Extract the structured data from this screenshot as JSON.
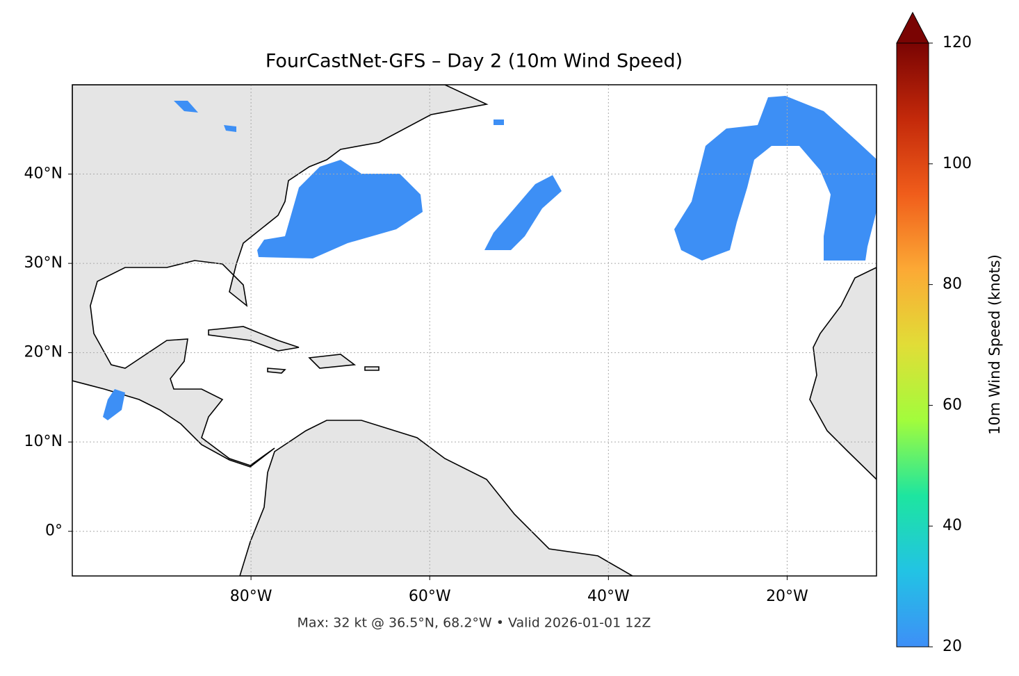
{
  "chart_data": {
    "type": "map",
    "title": "FourCastNet-GFS – Day 2 (10m Wind Speed)",
    "note": "Max: 32 kt @ 36.5°N, 68.2°W • Valid 2026-01-01 12Z",
    "xlim": [
      -100,
      -10
    ],
    "ylim": [
      -5,
      50
    ],
    "xticks": [
      {
        "value": -80,
        "label": "80°W"
      },
      {
        "value": -60,
        "label": "60°W"
      },
      {
        "value": -40,
        "label": "40°W"
      },
      {
        "value": -20,
        "label": "20°W"
      }
    ],
    "yticks": [
      {
        "value": 0,
        "label": "0°"
      },
      {
        "value": 10,
        "label": "10°N"
      },
      {
        "value": 20,
        "label": "20°N"
      },
      {
        "value": 30,
        "label": "30°N"
      },
      {
        "value": 40,
        "label": "40°N"
      }
    ],
    "grid": true,
    "colorbar": {
      "label": "10m Wind Speed (knots)",
      "lim": [
        20,
        120
      ],
      "ticks": [
        20,
        40,
        60,
        80,
        100,
        120
      ],
      "colormap": "turbo",
      "extend": "max"
    }
  }
}
